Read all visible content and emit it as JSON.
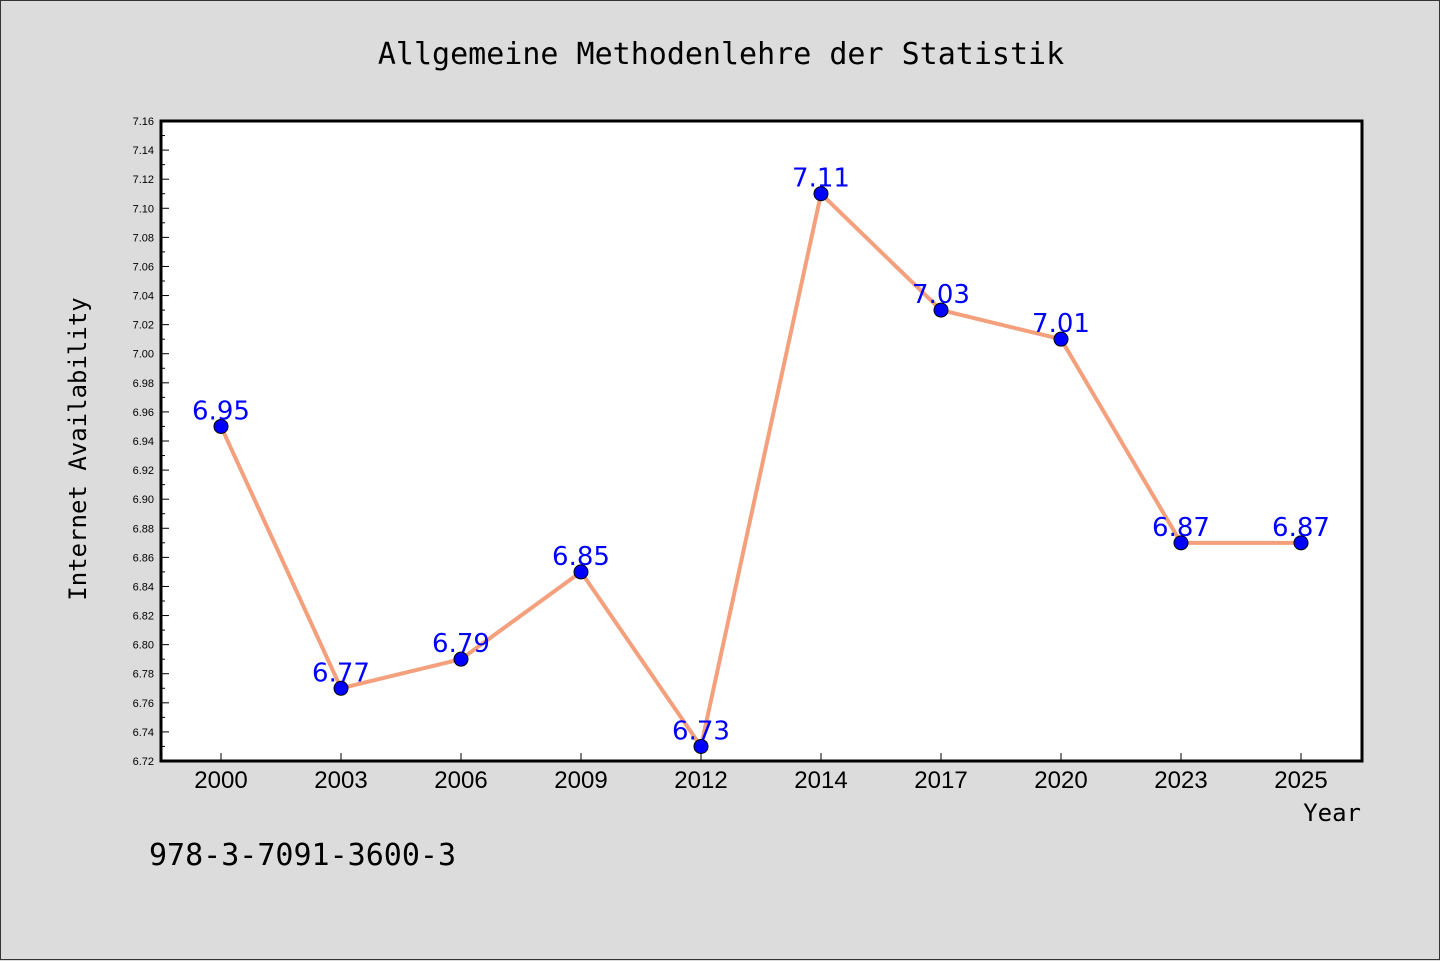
{
  "chart_data": {
    "type": "line",
    "title": "Allgemeine Methodenlehre der Statistik",
    "xlabel": "Year",
    "ylabel": "Internet Availability",
    "categories": [
      "2000",
      "2003",
      "2006",
      "2009",
      "2012",
      "2014",
      "2017",
      "2020",
      "2023",
      "2025"
    ],
    "series": [
      {
        "values": [
          6.95,
          6.77,
          6.79,
          6.85,
          6.73,
          7.11,
          7.03,
          7.01,
          6.87,
          6.87
        ],
        "data_labels": [
          "6.95",
          "6.77",
          "6.79",
          "6.85",
          "6.73",
          "7.11",
          "7.03",
          "7.01",
          "6.87",
          "6.87"
        ]
      }
    ],
    "ylim": [
      6.72,
      7.16
    ],
    "yticks": [
      "6.72",
      "6.74",
      "6.76",
      "6.78",
      "6.80",
      "6.82",
      "6.84",
      "6.86",
      "6.88",
      "6.90",
      "6.92",
      "6.94",
      "6.96",
      "6.98",
      "7.00",
      "7.02",
      "7.04",
      "7.06",
      "7.08",
      "7.10",
      "7.12",
      "7.14",
      "7.16"
    ],
    "grid": false,
    "legend": "none",
    "colors": {
      "line": "#f4a07c",
      "marker": "#0000ff",
      "data_label": "#0000ff",
      "background": "#dcdcdc",
      "plot_background": "#ffffff"
    }
  },
  "footer": {
    "isbn": "978-3-7091-3600-3"
  }
}
